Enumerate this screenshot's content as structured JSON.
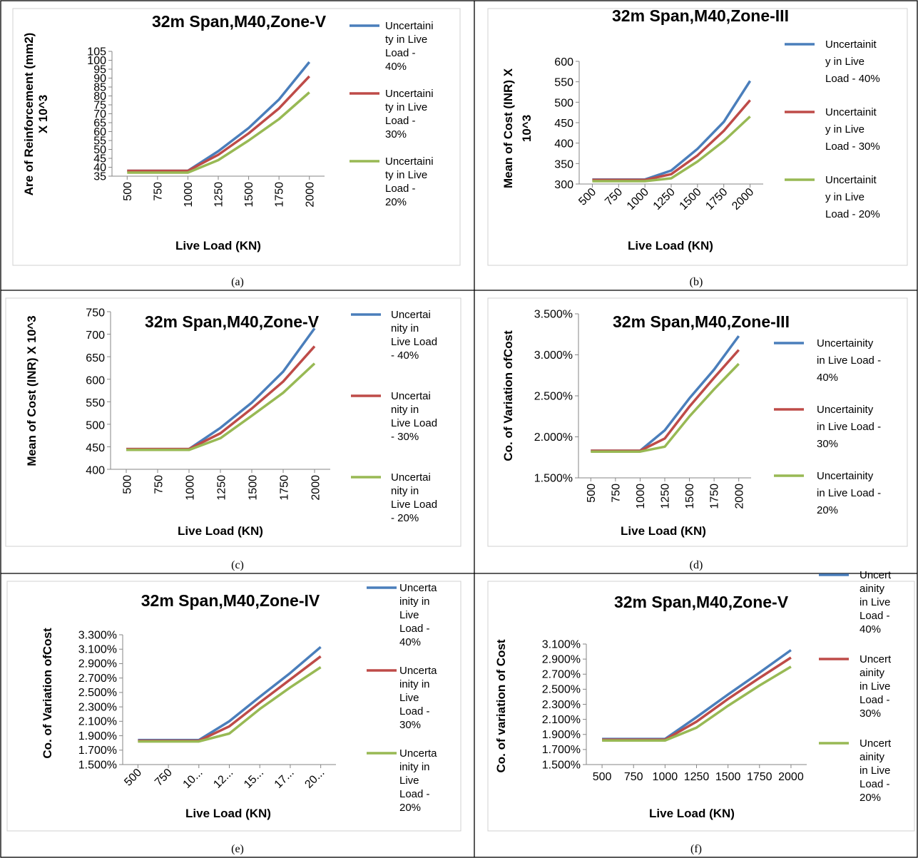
{
  "colors": {
    "s40": "#4a7ebb",
    "s30": "#be4b48",
    "s20": "#98b954"
  },
  "panels": [
    {
      "label": "(a)"
    },
    {
      "label": "(b)"
    },
    {
      "label": "(c)"
    },
    {
      "label": "(d)"
    },
    {
      "label": "(e)"
    },
    {
      "label": "(f)"
    }
  ],
  "chart_data": [
    {
      "id": "a",
      "type": "line",
      "title": "32m Span,M40,Zone-V",
      "xlabel": "Live Load (KN)",
      "ylabel": [
        "Are of Reinforcement (mm2)",
        "X 10^3"
      ],
      "categories": [
        "500",
        "750",
        "1000",
        "1250",
        "1500",
        "1750",
        "2000"
      ],
      "yticks": [
        "35",
        "40",
        "45",
        "50",
        "55",
        "60",
        "65",
        "70",
        "75",
        "80",
        "85",
        "90",
        "95",
        "100",
        "105"
      ],
      "ylim": [
        35,
        105
      ],
      "series": [
        {
          "name": [
            "Uncertaini",
            "ty in Live",
            "Load -",
            "40%"
          ],
          "values": [
            38,
            38,
            38,
            49,
            62,
            78,
            99
          ]
        },
        {
          "name": [
            "Uncertaini",
            "ty in Live",
            "Load -",
            "30%"
          ],
          "values": [
            38,
            38,
            38,
            47,
            59,
            73,
            91
          ]
        },
        {
          "name": [
            "Uncertaini",
            "ty in Live",
            "Load -",
            "20%"
          ],
          "values": [
            37,
            37,
            37,
            44,
            55,
            67,
            82
          ]
        }
      ]
    },
    {
      "id": "b",
      "type": "line",
      "title": "32m Span,M40,Zone-III",
      "xlabel": "Live Load (KN)",
      "ylabel": [
        "Mean of Cost (INR) X",
        "10^3"
      ],
      "categories": [
        "500",
        "750",
        "1000",
        "1250",
        "1500",
        "1750",
        "2000"
      ],
      "yticks": [
        "300",
        "350",
        "400",
        "450",
        "500",
        "550",
        "600"
      ],
      "ylim": [
        300,
        600
      ],
      "series": [
        {
          "name": [
            "Uncertainit",
            "y in Live",
            "Load - 40%"
          ],
          "values": [
            311,
            311,
            311,
            333,
            386,
            452,
            552
          ]
        },
        {
          "name": [
            "Uncertainit",
            "y in Live",
            "Load - 30%"
          ],
          "values": [
            310,
            310,
            310,
            324,
            370,
            430,
            505
          ]
        },
        {
          "name": [
            "Uncertainit",
            "y in Live",
            "Load - 20%"
          ],
          "values": [
            307,
            307,
            307,
            314,
            355,
            405,
            465
          ]
        }
      ]
    },
    {
      "id": "c",
      "type": "line",
      "title": "32m Span,M40,Zone-V",
      "xlabel": "Live Load (KN)",
      "ylabel": [
        "Mean of Cost (INR) X 10^3"
      ],
      "categories": [
        "500",
        "750",
        "1000",
        "1250",
        "1500",
        "1750",
        "2000"
      ],
      "yticks": [
        "400",
        "450",
        "500",
        "550",
        "600",
        "650",
        "700",
        "750"
      ],
      "ylim": [
        400,
        750
      ],
      "series": [
        {
          "name": [
            "Uncertai",
            "nity in",
            "Live Load",
            "- 40%"
          ],
          "values": [
            445,
            445,
            445,
            492,
            548,
            617,
            713
          ]
        },
        {
          "name": [
            "Uncertai",
            "nity in",
            "Live Load",
            "- 30%"
          ],
          "values": [
            445,
            445,
            445,
            480,
            535,
            595,
            673
          ]
        },
        {
          "name": [
            "Uncertai",
            "nity in",
            "Live Load",
            "- 20%"
          ],
          "values": [
            443,
            443,
            443,
            469,
            519,
            570,
            635
          ]
        }
      ]
    },
    {
      "id": "d",
      "type": "line",
      "title": "32m Span,M40,Zone-III",
      "xlabel": "Live Load (KN)",
      "ylabel": [
        "Co. of Variation ofCost"
      ],
      "categories": [
        "500",
        "750",
        "1000",
        "1250",
        "1500",
        "1750",
        "2000"
      ],
      "yticks": [
        "1.500%",
        "2.000%",
        "2.500%",
        "3.000%",
        "3.500%"
      ],
      "ylim": [
        1.5,
        3.5
      ],
      "series": [
        {
          "name": [
            "Uncertainity",
            "in Live Load -",
            "40%"
          ],
          "values": [
            1.83,
            1.83,
            1.83,
            2.08,
            2.47,
            2.82,
            3.23
          ]
        },
        {
          "name": [
            "Uncertainity",
            "in Live Load -",
            "30%"
          ],
          "values": [
            1.83,
            1.83,
            1.83,
            1.98,
            2.37,
            2.72,
            3.06
          ]
        },
        {
          "name": [
            "Uncertainity",
            "in Live Load -",
            "20%"
          ],
          "values": [
            1.82,
            1.82,
            1.82,
            1.88,
            2.25,
            2.58,
            2.89
          ]
        }
      ]
    },
    {
      "id": "e",
      "type": "line",
      "title": "32m Span,M40,Zone-IV",
      "xlabel": "Live Load (KN)",
      "ylabel": [
        "Co. of Variation ofCost"
      ],
      "categories": [
        "500",
        "750",
        "10...",
        "12...",
        "15...",
        "17...",
        "20..."
      ],
      "yticks": [
        "1.500%",
        "1.700%",
        "1.900%",
        "2.100%",
        "2.300%",
        "2.500%",
        "2.700%",
        "2.900%",
        "3.100%",
        "3.300%"
      ],
      "ylim": [
        1.5,
        3.3
      ],
      "series": [
        {
          "name": [
            "Uncerta",
            "inity in",
            "Live",
            "Load -",
            "40%"
          ],
          "values": [
            1.84,
            1.84,
            1.84,
            2.1,
            2.44,
            2.77,
            3.13
          ]
        },
        {
          "name": [
            "Uncerta",
            "inity in",
            "Live",
            "Load -",
            "30%"
          ],
          "values": [
            1.83,
            1.83,
            1.83,
            2.03,
            2.36,
            2.68,
            3.0
          ]
        },
        {
          "name": [
            "Uncerta",
            "inity in",
            "Live",
            "Load -",
            "20%"
          ],
          "values": [
            1.82,
            1.82,
            1.82,
            1.93,
            2.27,
            2.57,
            2.85
          ]
        }
      ]
    },
    {
      "id": "f",
      "type": "line",
      "title": "32m Span,M40,Zone-V",
      "xlabel": "Live Load (KN)",
      "ylabel": [
        "Co. of variation of Cost"
      ],
      "categories": [
        "500",
        "750",
        "1000",
        "1250",
        "1500",
        "1750",
        "2000"
      ],
      "yticks": [
        "1.500%",
        "1.700%",
        "1.900%",
        "2.100%",
        "2.300%",
        "2.500%",
        "2.700%",
        "2.900%",
        "3.100%"
      ],
      "ylim": [
        1.5,
        3.1
      ],
      "series": [
        {
          "name": [
            "Uncert",
            "ainity",
            "in Live",
            "Load -",
            "40%"
          ],
          "values": [
            1.84,
            1.84,
            1.84,
            2.13,
            2.43,
            2.72,
            3.02
          ]
        },
        {
          "name": [
            "Uncert",
            "ainity",
            "in Live",
            "Load -",
            "30%"
          ],
          "values": [
            1.83,
            1.83,
            1.83,
            2.07,
            2.37,
            2.65,
            2.92
          ]
        },
        {
          "name": [
            "Uncert",
            "ainity",
            "in Live",
            "Load -",
            "20%"
          ],
          "values": [
            1.82,
            1.82,
            1.82,
            1.99,
            2.28,
            2.55,
            2.8
          ]
        }
      ]
    }
  ]
}
